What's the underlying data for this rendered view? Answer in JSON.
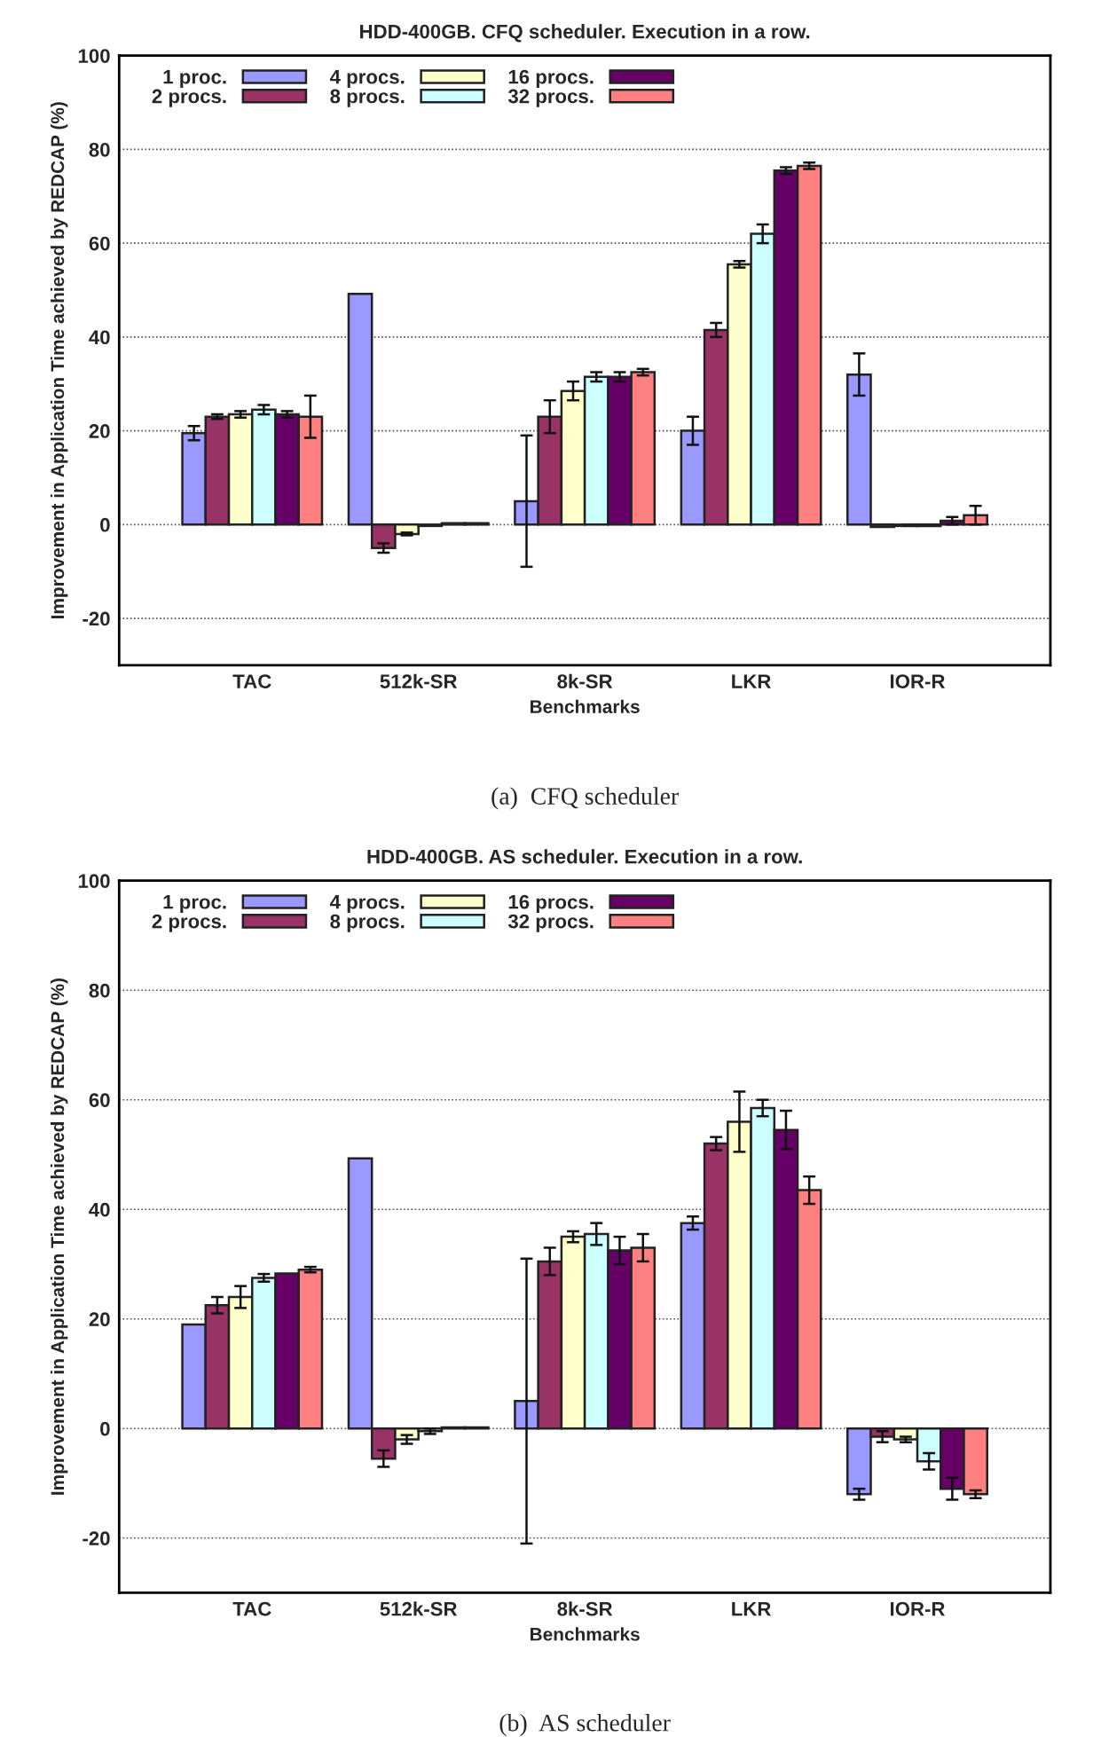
{
  "chart_data": [
    {
      "type": "bar",
      "title": "HDD-400GB. CFQ scheduler. Execution in a row.",
      "xlabel": "Benchmarks",
      "ylabel": "Improvement in Application Time achieved by REDCAP (%)",
      "categories": [
        "TAC",
        "512k-SR",
        "8k-SR",
        "LKR",
        "IOR-R"
      ],
      "ylim": [
        -30,
        100
      ],
      "yticks": [
        -20,
        0,
        20,
        40,
        60,
        80,
        100
      ],
      "grid": "y",
      "legend": "top left",
      "annotations": [
        "(a)  CFQ scheduler"
      ],
      "series": [
        {
          "name": "1 proc.",
          "color": "#9999ff",
          "values": [
            19.5,
            49.2,
            5,
            20,
            32
          ],
          "errors": [
            1.5,
            null,
            14,
            3,
            4.5
          ]
        },
        {
          "name": "2 procs.",
          "color": "#993366",
          "values": [
            23,
            -5,
            23,
            41.5,
            -0.5
          ],
          "errors": [
            0.5,
            1,
            3.5,
            1.5,
            null
          ]
        },
        {
          "name": "4 procs.",
          "color": "#ffffcc",
          "values": [
            23.5,
            -2,
            28.5,
            55.5,
            -0.3
          ],
          "errors": [
            0.7,
            0.3,
            2,
            0.7,
            null
          ]
        },
        {
          "name": "8 procs.",
          "color": "#ccffff",
          "values": [
            24.5,
            -0.3,
            31.5,
            62,
            -0.3
          ],
          "errors": [
            1,
            null,
            1,
            2,
            null
          ]
        },
        {
          "name": "16 procs.",
          "color": "#660066",
          "values": [
            23.5,
            0.3,
            31.5,
            75.5,
            0.8
          ],
          "errors": [
            0.7,
            null,
            1,
            0.7,
            0.8
          ]
        },
        {
          "name": "32 procs.",
          "color": "#ff8080",
          "values": [
            23,
            0.3,
            32.5,
            76.5,
            2
          ],
          "errors": [
            4.5,
            null,
            0.7,
            0.7,
            2
          ]
        }
      ]
    },
    {
      "type": "bar",
      "title": "HDD-400GB. AS scheduler. Execution in a row.",
      "xlabel": "Benchmarks",
      "ylabel": "Improvement in Application Time achieved by REDCAP (%)",
      "categories": [
        "TAC",
        "512k-SR",
        "8k-SR",
        "LKR",
        "IOR-R"
      ],
      "ylim": [
        -30,
        100
      ],
      "yticks": [
        -20,
        0,
        20,
        40,
        60,
        80,
        100
      ],
      "grid": "y",
      "legend": "top left",
      "annotations": [
        "(b)  AS scheduler"
      ],
      "series": [
        {
          "name": "1 proc.",
          "color": "#9999ff",
          "values": [
            19,
            49.3,
            5,
            37.5,
            -12
          ],
          "errors": [
            null,
            null,
            26,
            1.2,
            1
          ]
        },
        {
          "name": "2 procs.",
          "color": "#993366",
          "values": [
            22.5,
            -5.5,
            30.5,
            52,
            -1.5
          ],
          "errors": [
            1.5,
            1.5,
            2.5,
            1.2,
            1
          ]
        },
        {
          "name": "4 procs.",
          "color": "#ffffcc",
          "values": [
            24,
            -2,
            35,
            56,
            -2
          ],
          "errors": [
            2,
            0.8,
            1,
            5.5,
            0.5
          ]
        },
        {
          "name": "8 procs.",
          "color": "#ccffff",
          "values": [
            27.5,
            -0.5,
            35.5,
            58.5,
            -6
          ],
          "errors": [
            0.7,
            0.5,
            2,
            1.5,
            1.5
          ]
        },
        {
          "name": "16 procs.",
          "color": "#660066",
          "values": [
            28.3,
            0.2,
            32.5,
            54.5,
            -11
          ],
          "errors": [
            null,
            null,
            2.5,
            3.5,
            2
          ]
        },
        {
          "name": "32 procs.",
          "color": "#ff8080",
          "values": [
            29,
            0.2,
            33,
            43.5,
            -12
          ],
          "errors": [
            0.5,
            null,
            2.5,
            2.5,
            0.7
          ]
        }
      ]
    }
  ]
}
